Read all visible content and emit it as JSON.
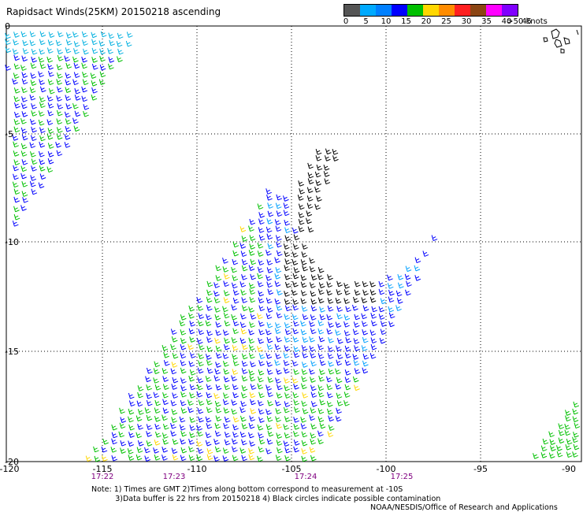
{
  "title": "Rapidsact Winds(25KM) 20150218 ascending",
  "legend": {
    "labels": [
      "0",
      "5",
      "10",
      "15",
      "20",
      "25",
      "30",
      "35",
      "40",
      "45",
      ">50 knots"
    ],
    "colors": [
      "#555555",
      "#00aaff",
      "#0080ff",
      "#0000ff",
      "#00c000",
      "#ffd700",
      "#ff8c00",
      "#ff2020",
      "#8b4513",
      "#ff00ff",
      "#8000ff"
    ]
  },
  "axes": {
    "x_ticks": [
      "-120",
      "-115",
      "-110",
      "-105",
      "-100",
      "-95",
      "-90"
    ],
    "y_ticks": [
      "0",
      "-5",
      "-10",
      "-15",
      "-20"
    ]
  },
  "times": [
    "17:22",
    "17:23",
    "17:24",
    "17:25"
  ],
  "notes": "Note: 1) Times are GMT 2)Times along bottom correspond to measurement at -10S\n          3)Data buffer is 22 hrs from 20150218 4) Black circles indicate possible contamination",
  "credit": "NOAA/NESDIS/Office of Research and Applications"
}
